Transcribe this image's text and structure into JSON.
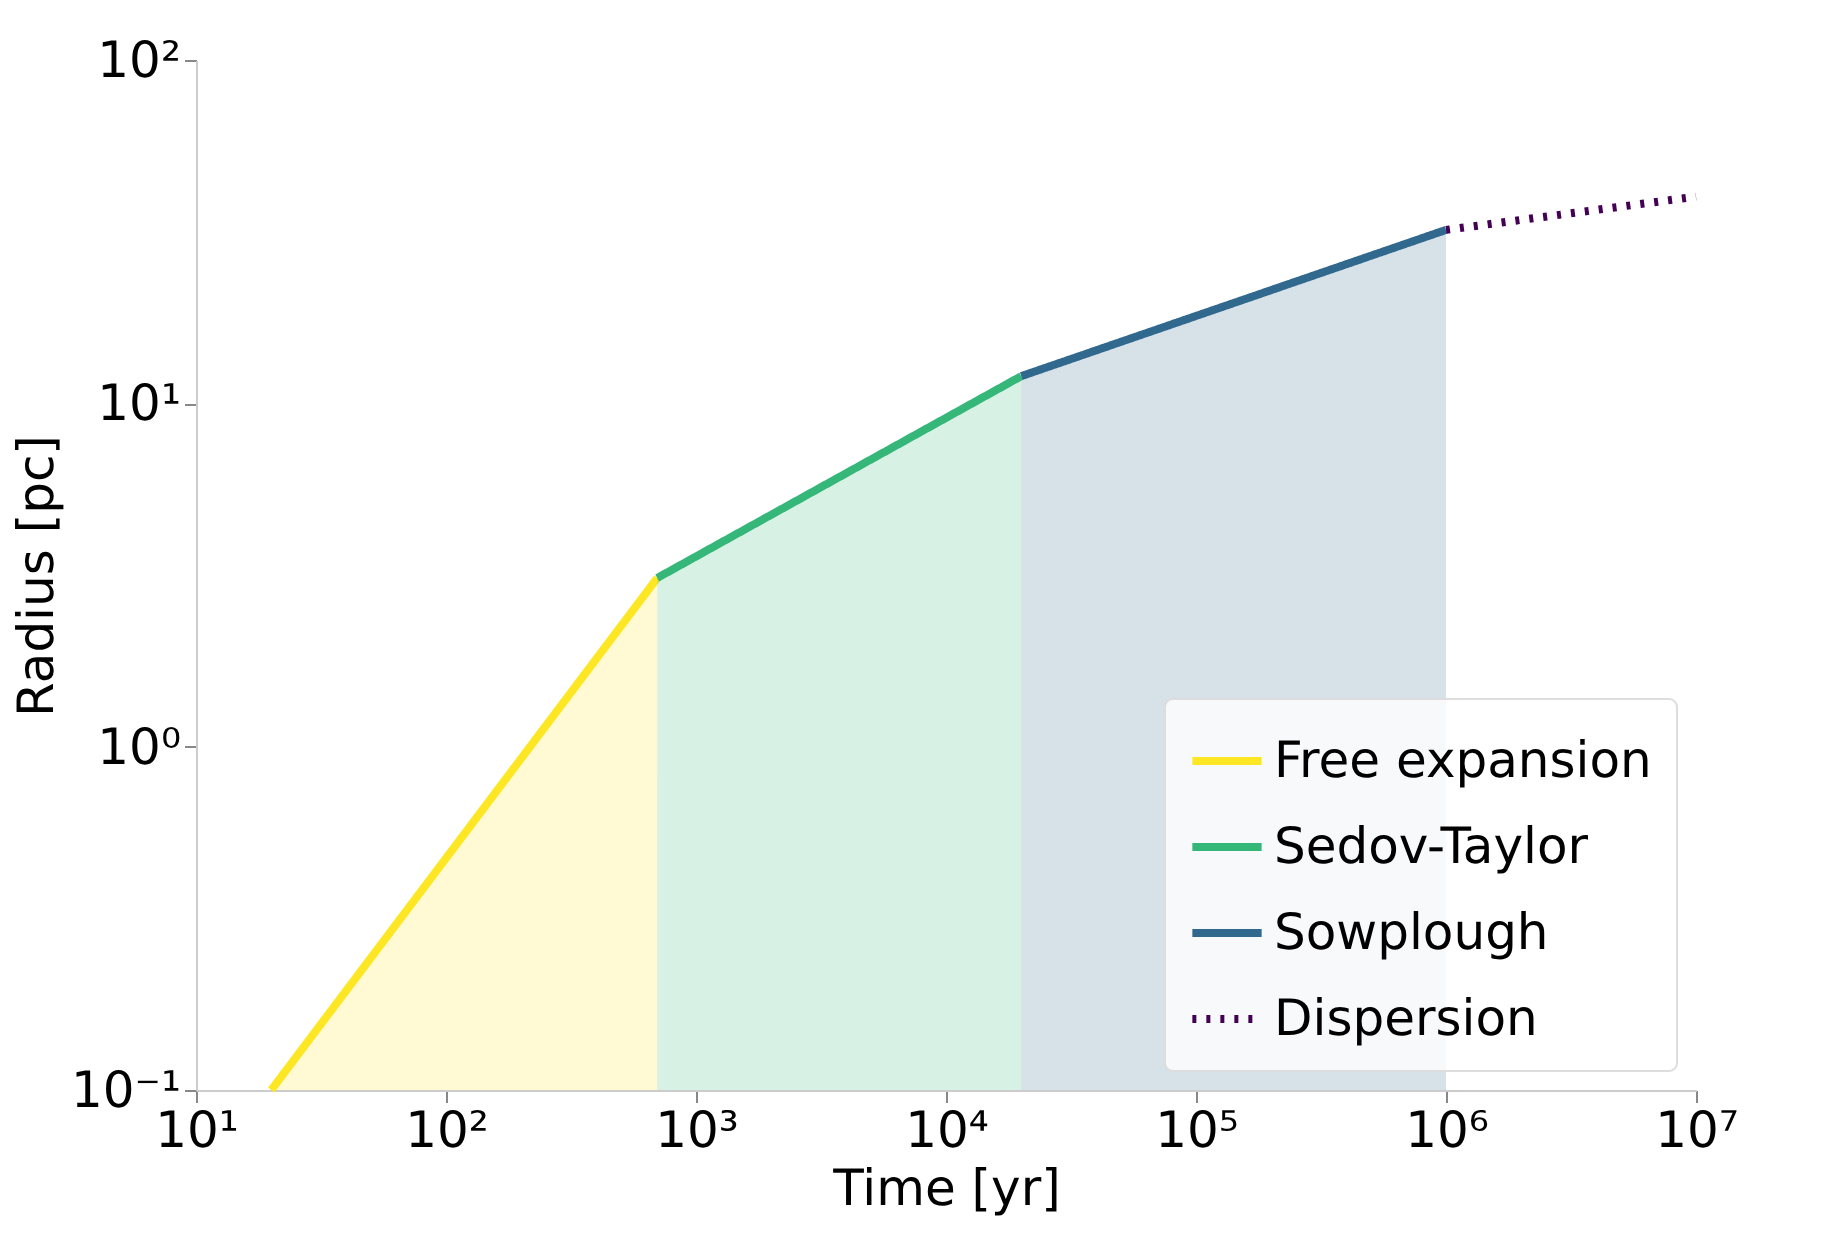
{
  "chart_data": {
    "type": "line",
    "xlabel": "Time [yr]",
    "ylabel": "Radius [pc]",
    "log": "xy",
    "grid": false,
    "legend": "bottom right",
    "xlim": [
      10,
      10000000
    ],
    "ylim": [
      0.1,
      100
    ],
    "xticks": [
      {
        "value": 10,
        "label": "10¹"
      },
      {
        "value": 100,
        "label": "10²"
      },
      {
        "value": 1000,
        "label": "10³"
      },
      {
        "value": 10000,
        "label": "10⁴"
      },
      {
        "value": 100000,
        "label": "10⁵"
      },
      {
        "value": 1000000,
        "label": "10⁶"
      },
      {
        "value": 10000000,
        "label": "10⁷"
      }
    ],
    "yticks": [
      {
        "value": 0.1,
        "label": "10⁻¹"
      },
      {
        "value": 1,
        "label": "10⁰"
      },
      {
        "value": 10,
        "label": "10¹"
      },
      {
        "value": 100,
        "label": "10²"
      }
    ],
    "series": [
      {
        "name": "Free expansion",
        "type": "area",
        "color": "#fde725",
        "x": [
          20,
          700
        ],
        "values": [
          0.1,
          3.1
        ]
      },
      {
        "name": "Sedov-Taylor",
        "type": "area",
        "color": "#35b779",
        "x": [
          700,
          20000
        ],
        "values": [
          3.1,
          12
        ]
      },
      {
        "name": "Sowplough",
        "type": "area",
        "color": "#31688e",
        "x": [
          20000,
          1000000
        ],
        "values": [
          12,
          32
        ]
      },
      {
        "name": "Dispersion",
        "type": "line",
        "color": "#440154",
        "line_style": "dotted",
        "x": [
          1000000,
          10000000
        ],
        "values": [
          32,
          40
        ]
      }
    ]
  }
}
